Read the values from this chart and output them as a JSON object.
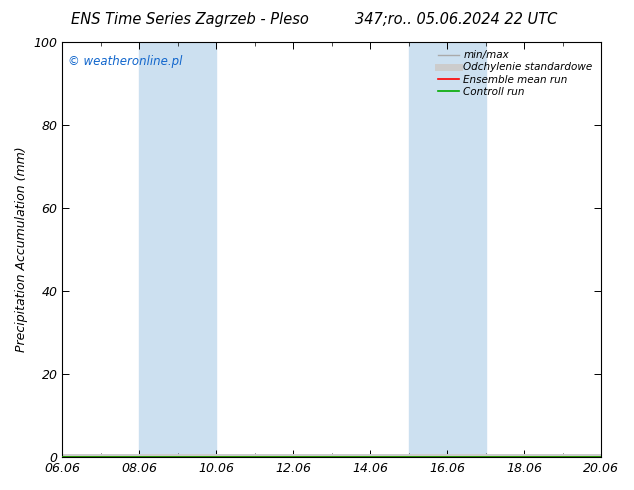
{
  "title_left": "ENS Time Series Zagrzeb - Pleso",
  "title_right": "347;ro.. 05.06.2024 22 UTC",
  "ylabel": "Precipitation Accumulation (mm)",
  "watermark": "© weatheronline.pl",
  "ylim": [
    0,
    100
  ],
  "yticks": [
    0,
    20,
    40,
    60,
    80,
    100
  ],
  "xlim": [
    0,
    14
  ],
  "xtick_labels": [
    "06.06",
    "08.06",
    "10.06",
    "12.06",
    "14.06",
    "16.06",
    "18.06",
    "20.06"
  ],
  "xtick_positions": [
    0,
    2,
    4,
    6,
    8,
    10,
    12,
    14
  ],
  "shaded_regions": [
    {
      "start": 2.0,
      "end": 4.0,
      "color": "#cce0f0"
    },
    {
      "start": 9.0,
      "end": 11.0,
      "color": "#cce0f0"
    }
  ],
  "legend_items": [
    {
      "label": "min/max",
      "color": "#aaaaaa",
      "lw": 1.0,
      "style": "-"
    },
    {
      "label": "Odchylenie standardowe",
      "color": "#cccccc",
      "lw": 5,
      "style": "-"
    },
    {
      "label": "Ensemble mean run",
      "color": "#ff0000",
      "lw": 1.2,
      "style": "-"
    },
    {
      "label": "Controll run",
      "color": "#00aa00",
      "lw": 1.2,
      "style": "-"
    }
  ],
  "background_color": "#ffffff",
  "plot_bg_color": "#ffffff",
  "watermark_color": "#1166cc",
  "title_fontsize": 10.5,
  "ylabel_fontsize": 9,
  "tick_fontsize": 9,
  "watermark_fontsize": 8.5
}
